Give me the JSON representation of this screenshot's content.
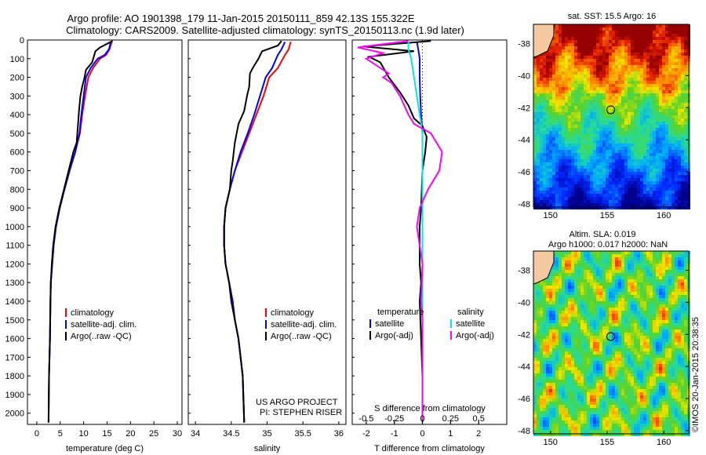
{
  "header": {
    "title_line1": "Argo profile: AO 1901398_179 11-Jan-2015 20150111_859 42.13S 155.322E",
    "title_line2": "Climatology: CARS2009. Satellite-adjusted climatology: synTS_20150113.nc (1.9d later)"
  },
  "colors": {
    "climatology": "#ff0000",
    "satellite": "#0000ff",
    "argo": "#000000",
    "salinity_satellite": "#00e5ee",
    "salinity_argo": "#ff00ff",
    "land": "#f4c8a0"
  },
  "credits": {
    "project": "US ARGO PROJECT",
    "pi": "PI: STEPHEN RISER",
    "imos": "©IMOS 20-Jan-2015 20:38:35"
  },
  "chart_data": [
    {
      "id": "temperature",
      "type": "line",
      "xlabel": "temperature (deg C)",
      "xlim": [
        -2,
        31
      ],
      "ylim": [
        2060,
        0
      ],
      "y_reversed": true,
      "xticks": [
        "0",
        "5",
        "10",
        "15",
        "20",
        "25",
        "30"
      ],
      "yticks": [
        "0",
        "100",
        "200",
        "300",
        "400",
        "500",
        "600",
        "700",
        "800",
        "900",
        "1000",
        "1100",
        "1200",
        "1300",
        "1400",
        "1500",
        "1600",
        "1700",
        "1800",
        "1900",
        "2000"
      ],
      "legend": [
        "climatology",
        "satellite-adj. clim.",
        "Argo(..raw -QC)"
      ],
      "series": [
        {
          "name": "climatology",
          "color": "#ff0000",
          "points": [
            [
              16,
              10
            ],
            [
              15.5,
              50
            ],
            [
              14.8,
              80
            ],
            [
              13.5,
              100
            ],
            [
              12,
              150
            ],
            [
              11,
              200
            ],
            [
              10.3,
              300
            ],
            [
              9.7,
              400
            ],
            [
              9.2,
              500
            ],
            [
              8.2,
              600
            ],
            [
              7,
              700
            ],
            [
              5.9,
              800
            ],
            [
              4.9,
              900
            ],
            [
              4.1,
              1000
            ],
            [
              3.6,
              1100
            ],
            [
              3.3,
              1200
            ],
            [
              3,
              1300
            ],
            [
              2.9,
              1400
            ],
            [
              2.8,
              1600
            ],
            [
              2.6,
              1800
            ],
            [
              2.5,
              2050
            ]
          ]
        },
        {
          "name": "satellite-adj. clim.",
          "color": "#0000ff",
          "points": [
            [
              15.8,
              10
            ],
            [
              15.4,
              50
            ],
            [
              14.5,
              80
            ],
            [
              13,
              100
            ],
            [
              11.5,
              150
            ],
            [
              10.5,
              200
            ],
            [
              10,
              300
            ],
            [
              9.5,
              400
            ],
            [
              9.1,
              500
            ],
            [
              8.2,
              600
            ],
            [
              7,
              700
            ],
            [
              5.9,
              800
            ],
            [
              4.9,
              900
            ],
            [
              4.1,
              1000
            ],
            [
              3.6,
              1100
            ],
            [
              3.3,
              1200
            ],
            [
              3,
              1300
            ],
            [
              2.9,
              1400
            ],
            [
              2.8,
              1600
            ],
            [
              2.6,
              1800
            ],
            [
              2.5,
              2050
            ]
          ]
        },
        {
          "name": "Argo(..raw -QC)",
          "color": "#000000",
          "points": [
            [
              16.2,
              5
            ],
            [
              13.5,
              40
            ],
            [
              12.5,
              60
            ],
            [
              11.8,
              120
            ],
            [
              10.5,
              160
            ],
            [
              10.2,
              200
            ],
            [
              9.7,
              250
            ],
            [
              9.3,
              300
            ],
            [
              9,
              380
            ],
            [
              8.8,
              450
            ],
            [
              8.5,
              550
            ],
            [
              7.8,
              600
            ],
            [
              6.8,
              700
            ],
            [
              5.8,
              800
            ],
            [
              4.8,
              900
            ],
            [
              4,
              1000
            ],
            [
              3.5,
              1100
            ],
            [
              3.2,
              1200
            ],
            [
              3,
              1300
            ],
            [
              2.9,
              1400
            ],
            [
              2.8,
              1600
            ],
            [
              2.6,
              1800
            ],
            [
              2.5,
              2050
            ]
          ]
        }
      ]
    },
    {
      "id": "salinity",
      "type": "line",
      "xlabel": "salinity",
      "xlim": [
        33.9,
        36.1
      ],
      "ylim": [
        2060,
        0
      ],
      "y_reversed": true,
      "xticks": [
        "34",
        "34.5",
        "35",
        "35.5",
        "36"
      ],
      "legend": [
        "climatology",
        "satellite-adj. clim.",
        "Argo(..raw -QC)"
      ],
      "series": [
        {
          "name": "climatology",
          "color": "#ff0000",
          "points": [
            [
              35.33,
              10
            ],
            [
              35.3,
              50
            ],
            [
              35.25,
              80
            ],
            [
              35.15,
              150
            ],
            [
              35.03,
              200
            ],
            [
              34.95,
              300
            ],
            [
              34.85,
              400
            ],
            [
              34.75,
              500
            ],
            [
              34.65,
              600
            ],
            [
              34.55,
              700
            ],
            [
              34.48,
              800
            ],
            [
              34.42,
              900
            ],
            [
              34.4,
              1000
            ],
            [
              34.4,
              1100
            ],
            [
              34.42,
              1200
            ],
            [
              34.47,
              1300
            ],
            [
              34.52,
              1400
            ],
            [
              34.55,
              1500
            ],
            [
              34.6,
              1600
            ],
            [
              34.63,
              1700
            ],
            [
              34.66,
              1800
            ],
            [
              34.68,
              2050
            ]
          ]
        },
        {
          "name": "satellite-adj. clim.",
          "color": "#0000ff",
          "points": [
            [
              35.25,
              10
            ],
            [
              35.2,
              50
            ],
            [
              35.15,
              80
            ],
            [
              35.07,
              150
            ],
            [
              34.98,
              200
            ],
            [
              34.9,
              300
            ],
            [
              34.82,
              400
            ],
            [
              34.73,
              500
            ],
            [
              34.63,
              600
            ],
            [
              34.55,
              700
            ],
            [
              34.48,
              800
            ],
            [
              34.42,
              900
            ],
            [
              34.4,
              1000
            ],
            [
              34.4,
              1100
            ],
            [
              34.42,
              1200
            ],
            [
              34.47,
              1300
            ],
            [
              34.52,
              1400
            ],
            [
              34.55,
              1500
            ],
            [
              34.6,
              1600
            ],
            [
              34.63,
              1700
            ],
            [
              34.66,
              1800
            ],
            [
              34.68,
              2050
            ]
          ]
        },
        {
          "name": "Argo(..raw -QC)",
          "color": "#000000",
          "points": [
            [
              35.2,
              5
            ],
            [
              35.15,
              30
            ],
            [
              34.93,
              60
            ],
            [
              34.88,
              100
            ],
            [
              34.8,
              150
            ],
            [
              34.76,
              180
            ],
            [
              34.75,
              250
            ],
            [
              34.72,
              300
            ],
            [
              34.68,
              380
            ],
            [
              34.6,
              450
            ],
            [
              34.55,
              550
            ],
            [
              34.52,
              650
            ],
            [
              34.5,
              700
            ],
            [
              34.48,
              800
            ],
            [
              34.42,
              900
            ],
            [
              34.4,
              1000
            ],
            [
              34.4,
              1100
            ],
            [
              34.42,
              1200
            ],
            [
              34.47,
              1300
            ],
            [
              34.5,
              1400
            ],
            [
              34.55,
              1500
            ],
            [
              34.6,
              1600
            ],
            [
              34.63,
              1700
            ],
            [
              34.66,
              1800
            ],
            [
              34.68,
              2050
            ]
          ]
        }
      ]
    },
    {
      "id": "difference",
      "type": "line",
      "xlabel": "T difference from climatology",
      "top_axis_label": "S difference from climatology",
      "xlim": [
        -2.5,
        3
      ],
      "ylim": [
        2060,
        0
      ],
      "y_reversed": true,
      "xticks": [
        "-2",
        "-1",
        "0",
        "1",
        "2"
      ],
      "top_ticks": [
        "-0.5",
        "-0.25",
        "0",
        "0.25",
        "0.5"
      ],
      "legend_temperature": {
        "title": "temperature",
        "items": [
          "satellite",
          "Argo(-adj)"
        ]
      },
      "legend_salinity": {
        "title": "salinity",
        "items": [
          "satellite",
          "Argo(-adj)"
        ]
      },
      "series": [
        {
          "name": "temperature satellite",
          "color": "#0000ff",
          "points": [
            [
              -0.2,
              10
            ],
            [
              -0.15,
              50
            ],
            [
              -0.1,
              100
            ],
            [
              -0.1,
              200
            ],
            [
              -0.08,
              300
            ],
            [
              -0.05,
              400
            ],
            [
              0,
              500
            ],
            [
              0,
              600
            ],
            [
              0,
              2050
            ]
          ]
        },
        {
          "name": "temperature Argo(-adj)",
          "color": "#000000",
          "points": [
            [
              0.3,
              5
            ],
            [
              -2.1,
              35
            ],
            [
              -0.3,
              60
            ],
            [
              -1.9,
              90
            ],
            [
              -1.5,
              120
            ],
            [
              -1.2,
              200
            ],
            [
              -0.8,
              280
            ],
            [
              -0.5,
              350
            ],
            [
              -0.3,
              420
            ],
            [
              0,
              460
            ],
            [
              0.15,
              520
            ],
            [
              0.1,
              600
            ],
            [
              0,
              700
            ],
            [
              -0.05,
              900
            ],
            [
              -0.1,
              1000
            ],
            [
              -0.1,
              1200
            ],
            [
              -0.05,
              1300
            ],
            [
              -0.1,
              1400
            ],
            [
              -0.05,
              1600
            ],
            [
              0,
              1800
            ],
            [
              0,
              2050
            ]
          ]
        },
        {
          "name": "salinity satellite",
          "color": "#00e5ee",
          "points": [
            [
              -0.5,
              10
            ],
            [
              -0.5,
              50
            ],
            [
              -0.4,
              100
            ],
            [
              -0.3,
              200
            ],
            [
              -0.2,
              300
            ],
            [
              -0.1,
              400
            ],
            [
              0,
              500
            ],
            [
              0,
              2050
            ]
          ]
        },
        {
          "name": "salinity Argo(-adj)",
          "color": "#ff00ff",
          "points": [
            [
              -0.5,
              5
            ],
            [
              -2.3,
              40
            ],
            [
              -1.4,
              70
            ],
            [
              -2,
              100
            ],
            [
              -1.6,
              140
            ],
            [
              -1.2,
              180
            ],
            [
              -1.4,
              200
            ],
            [
              -1.1,
              230
            ],
            [
              -0.8,
              300
            ],
            [
              -0.5,
              400
            ],
            [
              -0.3,
              450
            ],
            [
              0.3,
              500
            ],
            [
              0.7,
              600
            ],
            [
              0.6,
              700
            ],
            [
              0.2,
              800
            ],
            [
              -0.1,
              900
            ],
            [
              -0.2,
              1000
            ],
            [
              -0.1,
              1100
            ],
            [
              0,
              1200
            ],
            [
              -0.05,
              1400
            ],
            [
              0,
              1500
            ],
            [
              0,
              2050
            ]
          ]
        }
      ]
    },
    {
      "id": "sst_map",
      "type": "heatmap",
      "title": "sat. SST: 15.5 Argo: 16",
      "xlim": [
        148.5,
        162.2
      ],
      "ylim": [
        -48.2,
        -36.8
      ],
      "xticks": [
        "150",
        "155",
        "160"
      ],
      "yticks": [
        "-38",
        "-40",
        "-42",
        "-44",
        "-46",
        "-48"
      ],
      "marker": {
        "lon": 155.32,
        "lat": -42.13
      }
    },
    {
      "id": "sla_map",
      "type": "heatmap",
      "title_line1": "Altim. SLA: 0.019",
      "title_line2": "Argo h1000: 0.017 h2000: NaN",
      "xlim": [
        148.5,
        162.2
      ],
      "ylim": [
        -48.2,
        -36.8
      ],
      "xticks": [
        "150",
        "155",
        "160"
      ],
      "yticks": [
        "-38",
        "-40",
        "-42",
        "-44",
        "-46",
        "-48"
      ],
      "marker": {
        "lon": 155.32,
        "lat": -42.13
      }
    }
  ]
}
